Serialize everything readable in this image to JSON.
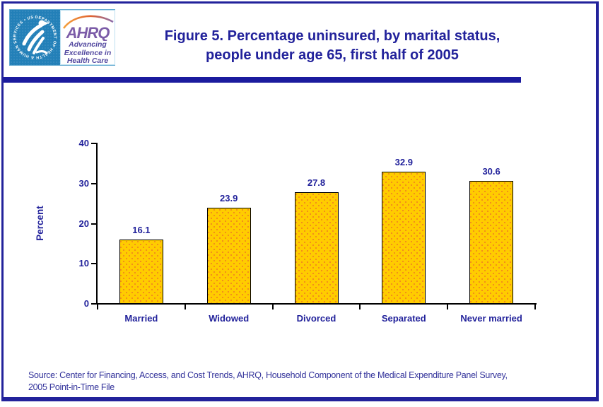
{
  "page": {
    "background": "#FFFFFF",
    "border_color": "#22229B"
  },
  "header": {
    "logo": {
      "seal_text": "DEPARTMENT OF HEALTH & HUMAN SERVICES • USA",
      "ahrq_acronym": "AHRQ",
      "tagline_line1": "Advancing",
      "tagline_line2": "Excellence in",
      "tagline_line3": "Health Care",
      "seal_bg_color": "#2380B8",
      "ahrq_purple": "#7C5CA8",
      "tagline_color": "#5349A0"
    },
    "title_line1": "Figure 5. Percentage uninsured, by marital status,",
    "title_line2": "people under age 65, first half of 2005",
    "title_color": "#22229B"
  },
  "chart_data": {
    "type": "bar",
    "title": "Figure 5. Percentage uninsured, by marital status, people under age 65, first half of 2005",
    "categories": [
      "Married",
      "Widowed",
      "Divorced",
      "Separated",
      "Never married"
    ],
    "values": [
      16.1,
      23.9,
      27.8,
      32.9,
      30.6
    ],
    "value_labels": [
      "16.1",
      "23.9",
      "27.8",
      "32.9",
      "30.6"
    ],
    "xlabel": "",
    "ylabel": "Percent",
    "ylim": [
      0,
      40
    ],
    "yticks": [
      0,
      10,
      20,
      30,
      40
    ],
    "grid": false,
    "legend": false,
    "bar_fill": "#FFCC00",
    "bar_dot_color": "#F08020",
    "bar_border": "#000000",
    "axis_color": "#000000",
    "label_color": "#22229B"
  },
  "footer": {
    "source_line1": "Source: Center for Financing, Access, and Cost Trends, AHRQ, Household Component of the Medical Expenditure Panel Survey,",
    "source_line2": "2005 Point-in-Time File"
  }
}
